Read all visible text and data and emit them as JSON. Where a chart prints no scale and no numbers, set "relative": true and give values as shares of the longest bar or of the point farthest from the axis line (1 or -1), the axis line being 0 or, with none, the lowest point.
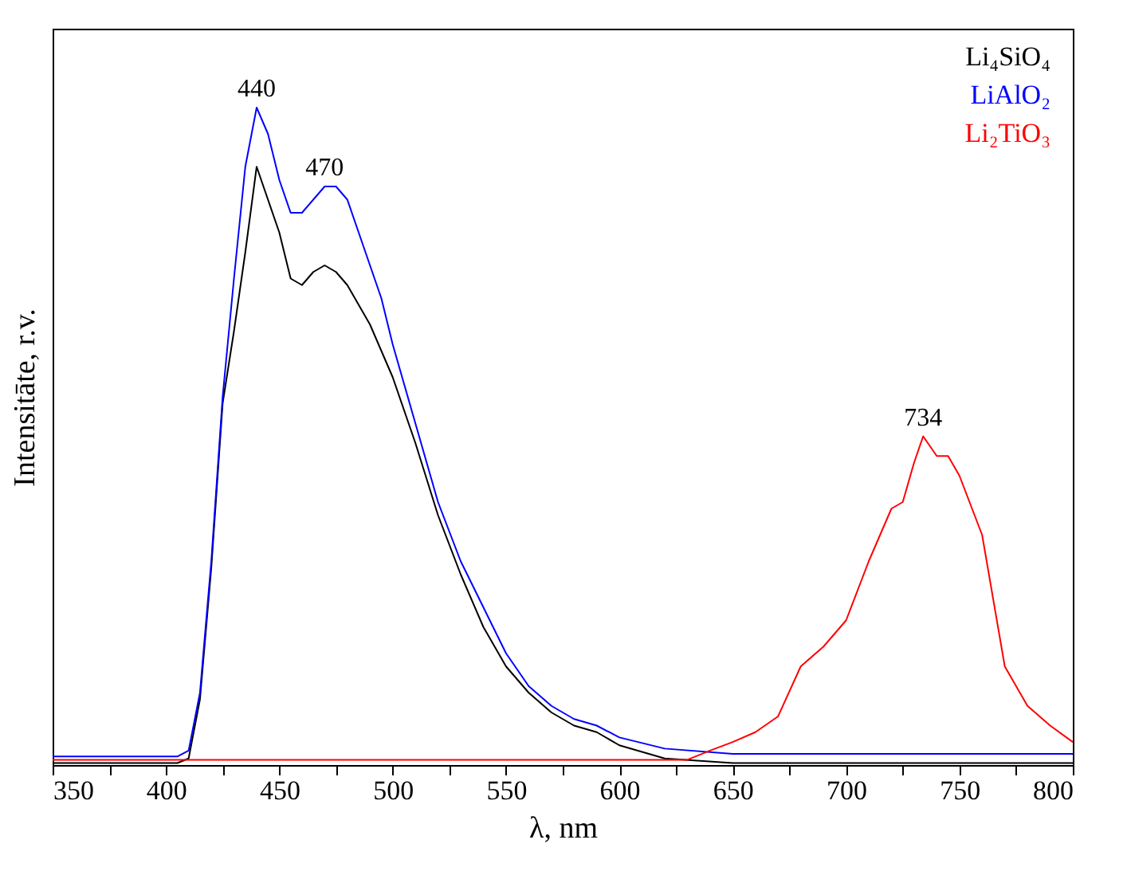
{
  "chart_data": {
    "type": "line",
    "relative": true,
    "xlabel": "λ, nm",
    "ylabel": "Intensitāte, r.v.",
    "xlim": [
      350,
      800
    ],
    "xticks": [
      350,
      {
        "value": 375,
        "label": null
      },
      400,
      {
        "value": 425,
        "label": null
      },
      450,
      {
        "value": 475,
        "label": null
      },
      500,
      {
        "value": 525,
        "label": null
      },
      550,
      {
        "value": 575,
        "label": null
      },
      600,
      {
        "value": 625,
        "label": null
      },
      650,
      {
        "value": 675,
        "label": null
      },
      700,
      {
        "value": 725,
        "label": null
      },
      750,
      {
        "value": 775,
        "label": null
      },
      800
    ],
    "tick_labels": "x",
    "grid": false,
    "legend": "top right",
    "marker": "none",
    "line_style": "solid",
    "annotations": [
      {
        "text": "440",
        "x": 440,
        "y": 1.0
      },
      {
        "text": "470",
        "x": 470,
        "y": 0.88
      },
      {
        "text": "734",
        "x": 734,
        "y": 0.5
      }
    ],
    "series": [
      {
        "name": "Li₄SiO₄",
        "color": "#000000",
        "x": [
          350,
          380,
          405,
          410,
          415,
          420,
          425,
          430,
          435,
          440,
          445,
          450,
          455,
          460,
          465,
          470,
          475,
          480,
          485,
          490,
          495,
          500,
          510,
          520,
          530,
          540,
          550,
          560,
          570,
          580,
          590,
          600,
          620,
          650,
          700,
          750,
          800
        ],
        "values": [
          0.003,
          0.003,
          0.003,
          0.01,
          0.1,
          0.3,
          0.55,
          0.66,
          0.78,
          0.91,
          0.86,
          0.81,
          0.74,
          0.73,
          0.75,
          0.76,
          0.75,
          0.73,
          0.7,
          0.67,
          0.63,
          0.59,
          0.49,
          0.38,
          0.29,
          0.21,
          0.15,
          0.11,
          0.08,
          0.06,
          0.05,
          0.03,
          0.01,
          0.003,
          0.003,
          0.003,
          0.003
        ]
      },
      {
        "name": "LiAlO₂",
        "color": "#0000ff",
        "x": [
          350,
          380,
          405,
          410,
          415,
          420,
          425,
          430,
          435,
          440,
          445,
          450,
          455,
          460,
          465,
          470,
          475,
          480,
          485,
          490,
          495,
          500,
          510,
          520,
          530,
          540,
          550,
          560,
          570,
          580,
          590,
          600,
          620,
          650,
          700,
          750,
          800
        ],
        "values": [
          0.013,
          0.013,
          0.013,
          0.022,
          0.11,
          0.31,
          0.56,
          0.74,
          0.91,
          1.0,
          0.96,
          0.89,
          0.84,
          0.84,
          0.86,
          0.88,
          0.88,
          0.86,
          0.81,
          0.76,
          0.71,
          0.64,
          0.52,
          0.4,
          0.31,
          0.24,
          0.17,
          0.12,
          0.09,
          0.07,
          0.06,
          0.042,
          0.025,
          0.017,
          0.017,
          0.017,
          0.017
        ]
      },
      {
        "name": "Li₂TiO₃",
        "color": "#ff0000",
        "x": [
          350,
          400,
          450,
          500,
          550,
          600,
          630,
          640,
          650,
          660,
          670,
          680,
          690,
          700,
          710,
          720,
          725,
          730,
          734,
          740,
          745,
          750,
          760,
          770,
          780,
          790,
          800
        ],
        "values": [
          0.008,
          0.008,
          0.008,
          0.008,
          0.008,
          0.008,
          0.008,
          0.022,
          0.035,
          0.05,
          0.074,
          0.15,
          0.18,
          0.22,
          0.31,
          0.39,
          0.4,
          0.46,
          0.5,
          0.47,
          0.47,
          0.44,
          0.35,
          0.15,
          0.09,
          0.06,
          0.035
        ]
      }
    ]
  }
}
